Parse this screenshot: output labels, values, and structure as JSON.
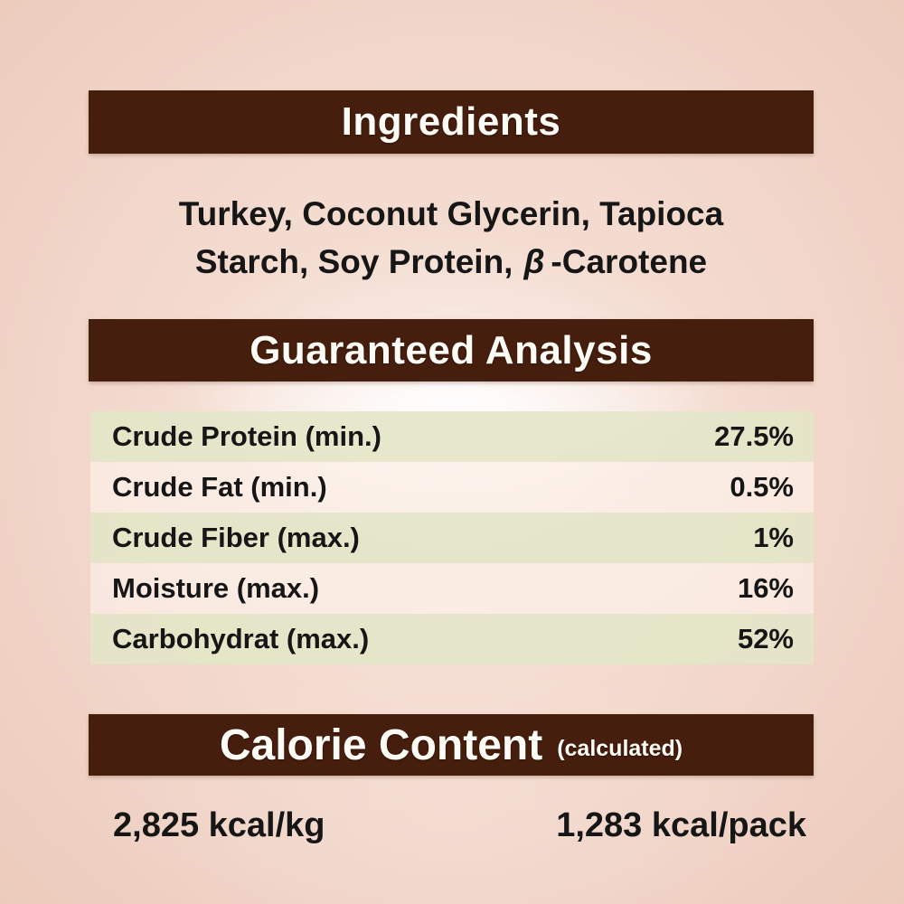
{
  "colors": {
    "background": "#f1d1c2",
    "header_bar": "#461e0d",
    "header_text": "#fdfbf6",
    "row_green": "#e2e6c7",
    "row_light": "#fff7f1",
    "body_text": "#161616"
  },
  "sections": {
    "ingredients": {
      "title": "Ingredients",
      "line1": "Turkey, Coconut Glycerin, Tapioca",
      "line2_prefix": "Starch, Soy Protein,",
      "line2_beta": "β",
      "line2_suffix": "-Carotene"
    },
    "analysis": {
      "title": "Guaranteed Analysis",
      "rows": [
        {
          "label": "Crude Protein (min.)",
          "value": "27.5%"
        },
        {
          "label": "Crude Fat (min.)",
          "value": "0.5%"
        },
        {
          "label": "Crude Fiber (max.)",
          "value": "1%"
        },
        {
          "label": "Moisture (max.)",
          "value": "16%"
        },
        {
          "label": "Carbohydrat (max.)",
          "value": "52%"
        }
      ]
    },
    "calories": {
      "title": "Calorie Content",
      "subtitle": "(calculated)",
      "per_kg": "2,825 kcal/kg",
      "per_pack": "1,283 kcal/pack"
    }
  }
}
